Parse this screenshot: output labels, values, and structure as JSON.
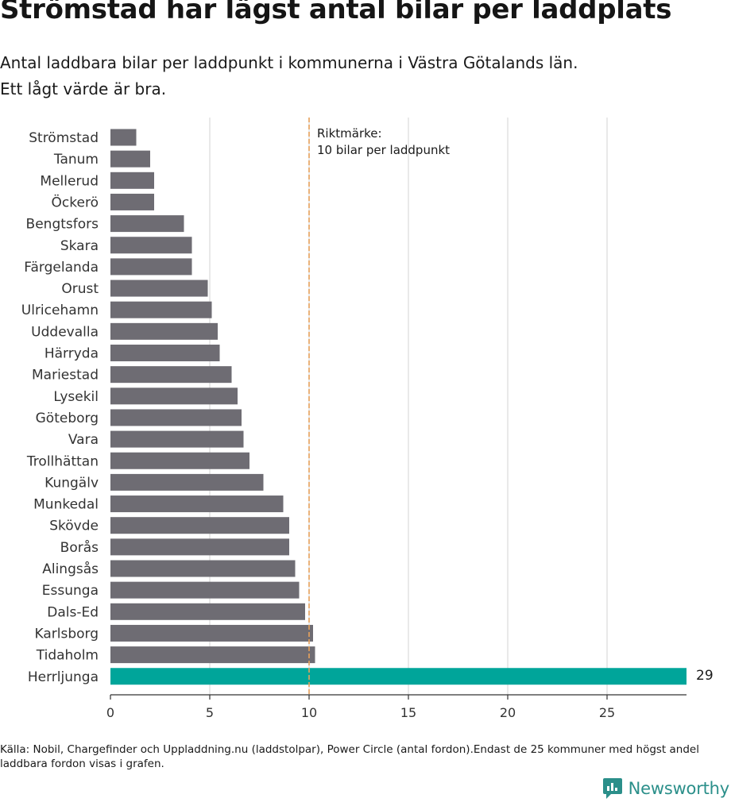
{
  "title": "Strömstad har lägst antal bilar per laddplats",
  "subtitle_lines": [
    "Antal laddbara bilar per laddpunkt i kommunerna i Västra Götalands län.",
    "Ett lågt värde är bra."
  ],
  "source": "Källa: Nobil, Chargefinder och Uppladdning.nu (laddstolpar), Power Circle (antal fordon).Endast de 25 kommuner med högst andel laddbara fordon visas i grafen.",
  "logo": {
    "text": "Newsworthy",
    "icon": "bar-chart-speech-bubble-icon",
    "color": "#2b8f8a"
  },
  "colors": {
    "bar": "#6e6c73",
    "highlight": "#00a59a",
    "reference": "#e8a25c",
    "grid": "#dddddd"
  },
  "chart_data": {
    "type": "bar",
    "orientation": "horizontal",
    "categories": [
      "Strömstad",
      "Tanum",
      "Mellerud",
      "Öckerö",
      "Bengtsfors",
      "Skara",
      "Färgelanda",
      "Orust",
      "Ulricehamn",
      "Uddevalla",
      "Härryda",
      "Mariestad",
      "Lysekil",
      "Göteborg",
      "Vara",
      "Trollhättan",
      "Kungälv",
      "Munkedal",
      "Skövde",
      "Borås",
      "Alingsås",
      "Essunga",
      "Dals-Ed",
      "Karlsborg",
      "Tidaholm",
      "Herrljunga"
    ],
    "values": [
      1.3,
      2.0,
      2.2,
      2.2,
      3.7,
      4.1,
      4.1,
      4.9,
      5.1,
      5.4,
      5.5,
      6.1,
      6.4,
      6.6,
      6.7,
      7.0,
      7.7,
      8.7,
      9.0,
      9.0,
      9.3,
      9.5,
      9.8,
      10.2,
      10.3,
      29
    ],
    "highlight": "Herrljunga",
    "value_labels": [
      {
        "category": "Herrljunga",
        "text": "29"
      }
    ],
    "xlim": [
      0,
      29
    ],
    "xticks": [
      0,
      5,
      10,
      15,
      20,
      25
    ],
    "grid": true,
    "reference_line": {
      "value": 10,
      "label_lines": [
        "Riktmärke:",
        "10 bilar per laddpunkt"
      ]
    }
  }
}
